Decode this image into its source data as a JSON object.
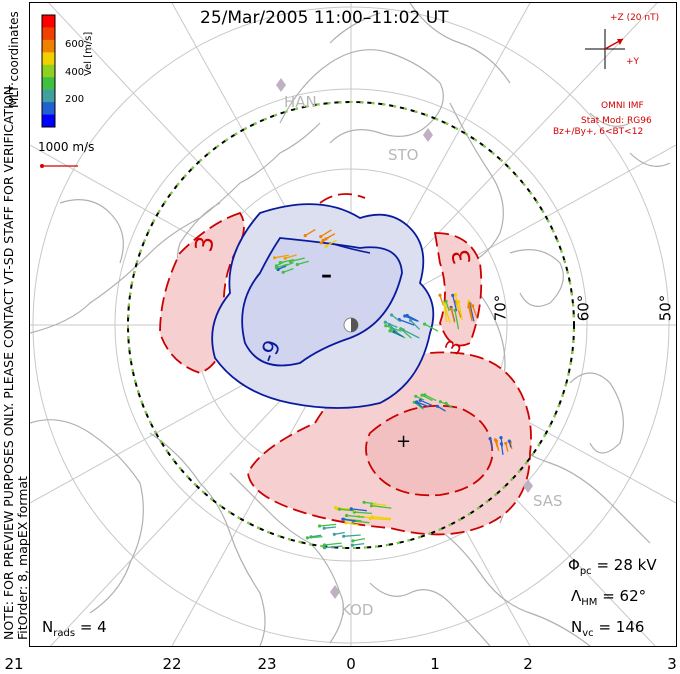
{
  "title": "25/Mar/2005 11:00–11:02 UT",
  "note": {
    "line1": "NOTE: FOR PREVIEW PURPOSES ONLY. PLEASE CONTACT VT-SD STAFF FOR VERIFICATION.",
    "line2": "FitOrder: 8, mapEX format"
  },
  "coordinate_system": "MLT coordinates",
  "color_bar": {
    "label": "Vel [m/s]",
    "ticks": [
      "600",
      "400",
      "200"
    ],
    "colors": [
      "#0000ff",
      "#2060d0",
      "#40a0a0",
      "#40c040",
      "#90d020",
      "#f0d000",
      "#f08000",
      "#f04000",
      "#ff0000"
    ]
  },
  "scale_vector": {
    "label": "1000 m/s",
    "color": "#d40000"
  },
  "imf": {
    "z_label": "+Z (20 nT)",
    "y_label": "+Y",
    "source": "OMNI IMF",
    "model": "Stat Mod: RG96",
    "condition": "Bz+/By+, 6<BT<12"
  },
  "stations": [
    "HAN",
    "STO",
    "SAS",
    "KOD"
  ],
  "latitude_labels": [
    "70°",
    "60°",
    "50°"
  ],
  "mlt_labels": [
    "21",
    "22",
    "23",
    "0",
    "1",
    "2",
    "3"
  ],
  "contour_labels": {
    "neg_cell": "-9",
    "pos_dawn": "3",
    "pos_dusk": "3",
    "pos_upper": "3",
    "minus_marker": "–",
    "plus_marker": "+"
  },
  "stats": {
    "phi_pc_symbol": "Φ",
    "phi_pc_sub": "pc",
    "phi_pc_value": "= 28 kV",
    "lambda_hm_symbol": "Λ",
    "lambda_hm_sub": "HM",
    "lambda_hm_value": "= 62°",
    "n_vc_symbol": "N",
    "n_vc_sub": "vc",
    "n_vc_value": "= 146",
    "n_rads_symbol": "N",
    "n_rads_sub": "rads",
    "n_rads_value": "= 4"
  },
  "colors": {
    "negative_cell": "#0a1a9e",
    "negative_fill": "#d8dcf0",
    "positive_cell": "#cc0000",
    "positive_fill": "#f6d0d0",
    "grid": "#c0c0c0",
    "boundary": "#000000",
    "heppner_maynard": "#7fd13b"
  }
}
